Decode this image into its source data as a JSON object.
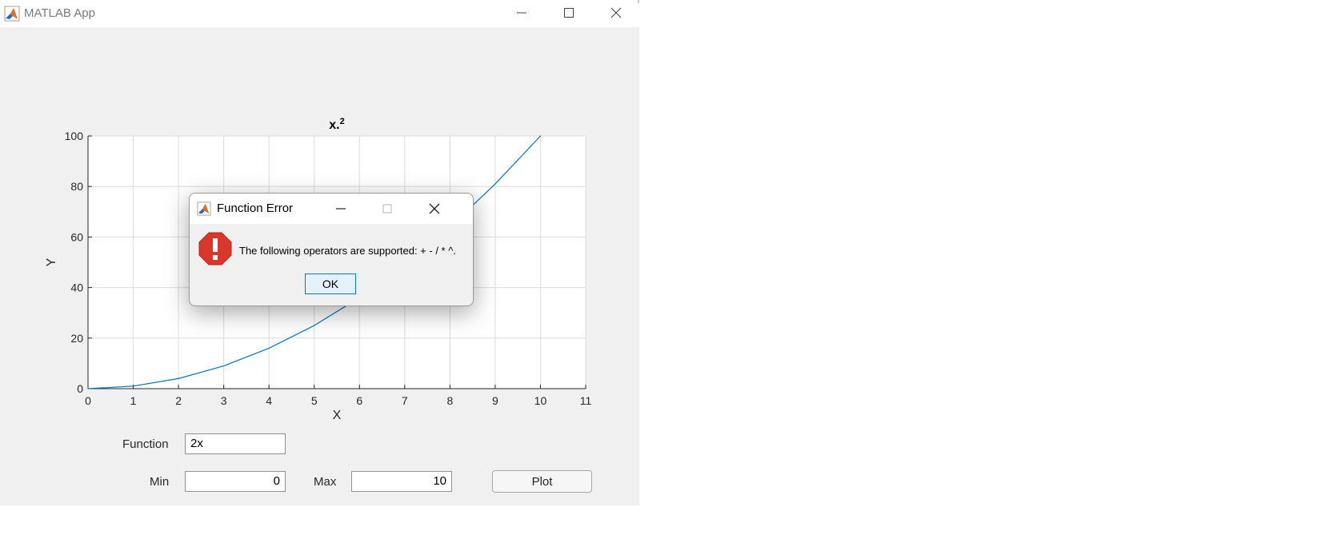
{
  "window": {
    "title": "MATLAB App",
    "icon": "matlab-icon"
  },
  "chart_data": {
    "type": "line",
    "title": "x.^2",
    "title_base": "x.",
    "title_sup": "2",
    "xlabel": "X",
    "ylabel": "Y",
    "xlim": [
      0,
      11
    ],
    "ylim": [
      0,
      100
    ],
    "xticks": [
      "0",
      "1",
      "2",
      "3",
      "4",
      "5",
      "6",
      "7",
      "8",
      "9",
      "10",
      "11"
    ],
    "yticks": [
      "0",
      "20",
      "40",
      "60",
      "80",
      "100"
    ],
    "grid": true,
    "series": [
      {
        "color": "#0072bd",
        "x": [
          0,
          1,
          2,
          3,
          4,
          5,
          6,
          7,
          8,
          9,
          10
        ],
        "values": [
          0,
          1,
          4,
          9,
          16,
          25,
          36,
          49,
          64,
          81,
          100
        ]
      }
    ]
  },
  "controls": {
    "function_label": "Function",
    "function_value": "2x",
    "min_label": "Min",
    "min_value": "0",
    "max_label": "Max",
    "max_value": "10",
    "plot_label": "Plot"
  },
  "dialog": {
    "title": "Function Error",
    "message": "The following operators are supported: + - / * ^.",
    "ok_label": "OK",
    "icon": "error-icon"
  },
  "colors": {
    "line": "#0072bd",
    "error": "#d9372b",
    "ok_border": "#0078d4"
  }
}
